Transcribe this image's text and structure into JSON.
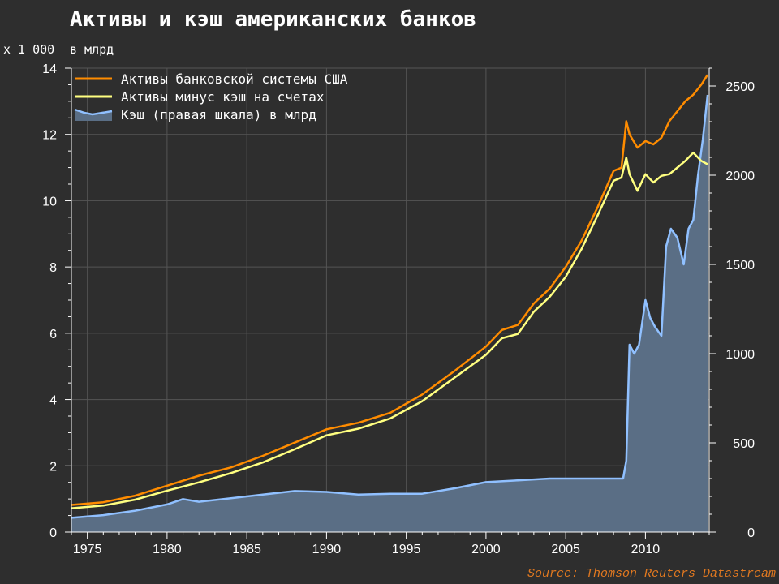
{
  "chart_data": {
    "type": "line",
    "title": "Активы и кэш американских банков",
    "left_unit_label": "x 1 000",
    "right_unit_label": "в млрд",
    "source": "Source: Thomson Reuters Datastream",
    "x_range": [
      1974,
      2014
    ],
    "x_ticks": [
      1975,
      1980,
      1985,
      1990,
      1995,
      2000,
      2005,
      2010
    ],
    "y_left_range": [
      0,
      14
    ],
    "y_left_ticks": [
      0,
      2,
      4,
      6,
      8,
      10,
      12,
      14
    ],
    "y_right_range": [
      0,
      2600
    ],
    "y_right_ticks": [
      0,
      500,
      1000,
      1500,
      2000,
      2500
    ],
    "grid": true,
    "legend_position": "top-left",
    "series": [
      {
        "name": "Активы банковской системы США",
        "axis": "left",
        "color": "#ff8c00",
        "x": [
          1974,
          1976,
          1978,
          1980,
          1982,
          1984,
          1986,
          1988,
          1990,
          1992,
          1994,
          1996,
          1998,
          2000,
          2001,
          2002,
          2003,
          2004,
          2005,
          2006,
          2007,
          2008,
          2008.5,
          2008.8,
          2009,
          2009.5,
          2010,
          2010.5,
          2011,
          2011.5,
          2012,
          2012.5,
          2013,
          2013.5,
          2013.9
        ],
        "y": [
          0.82,
          0.9,
          1.1,
          1.4,
          1.7,
          1.95,
          2.3,
          2.7,
          3.1,
          3.3,
          3.6,
          4.15,
          4.85,
          5.6,
          6.1,
          6.25,
          6.9,
          7.35,
          8.0,
          8.8,
          9.8,
          10.9,
          11.0,
          12.4,
          12.0,
          11.6,
          11.8,
          11.7,
          11.9,
          12.4,
          12.7,
          13.0,
          13.2,
          13.5,
          13.8
        ]
      },
      {
        "name": "Активы минус кэш на счетах",
        "axis": "left",
        "color": "#ffff80",
        "x": [
          1974,
          1976,
          1978,
          1980,
          1982,
          1984,
          1986,
          1988,
          1990,
          1992,
          1994,
          1996,
          1998,
          2000,
          2001,
          2002,
          2003,
          2004,
          2005,
          2006,
          2007,
          2008,
          2008.5,
          2008.8,
          2009,
          2009.5,
          2010,
          2010.5,
          2011,
          2011.5,
          2012,
          2012.5,
          2013,
          2013.5,
          2013.9
        ],
        "y": [
          0.72,
          0.8,
          0.98,
          1.25,
          1.5,
          1.78,
          2.1,
          2.5,
          2.92,
          3.12,
          3.43,
          3.95,
          4.65,
          5.35,
          5.85,
          5.98,
          6.65,
          7.1,
          7.7,
          8.55,
          9.55,
          10.6,
          10.7,
          11.3,
          10.8,
          10.3,
          10.8,
          10.55,
          10.75,
          10.8,
          11.0,
          11.2,
          11.45,
          11.2,
          11.1
        ]
      },
      {
        "name": "Кэш (правая шкала) в млрд",
        "axis": "right",
        "color": "#90c0ff",
        "fill": "#5a6e85",
        "x": [
          1974,
          1976,
          1978,
          1980,
          1981,
          1982,
          1984,
          1986,
          1988,
          1990,
          1992,
          1994,
          1996,
          1998,
          2000,
          2002,
          2004,
          2006,
          2008,
          2008.6,
          2008.8,
          2009,
          2009.3,
          2009.6,
          2010,
          2010.3,
          2010.6,
          2011,
          2011.3,
          2011.6,
          2012,
          2012.4,
          2012.7,
          2013,
          2013.3,
          2013.6,
          2013.9
        ],
        "y": [
          80,
          95,
          120,
          155,
          185,
          170,
          190,
          210,
          230,
          225,
          210,
          215,
          215,
          245,
          280,
          290,
          300,
          300,
          300,
          300,
          400,
          1050,
          1000,
          1050,
          1300,
          1200,
          1150,
          1100,
          1600,
          1700,
          1650,
          1500,
          1700,
          1750,
          2000,
          2200,
          2450
        ]
      }
    ]
  }
}
